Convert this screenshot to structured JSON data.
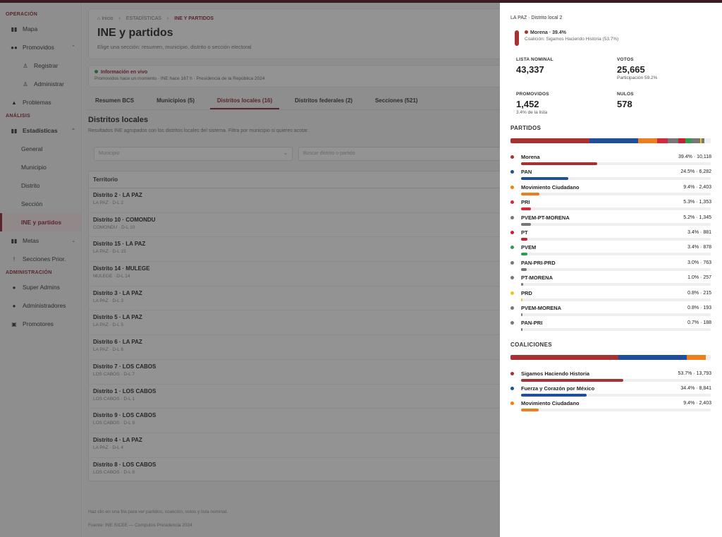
{
  "sidebar": {
    "section_operacion": "OPERACIÓN",
    "mapa": "Mapa",
    "promovidos": "Promovidos",
    "registrar": "Registrar",
    "administrar": "Administrar",
    "problemas": "Problemas",
    "section_analisis": "ANÁLISIS",
    "estadisticas": "Estadísticas",
    "general": "General",
    "municipio": "Municipio",
    "distrito": "Distrito",
    "seccion": "Sección",
    "ine_partidos": "INE y partidos",
    "metas": "Metas",
    "secciones_prior": "Secciones Prior.",
    "section_administracion": "ADMINISTRACIÓN",
    "super_admins": "Super Admins",
    "administradores": "Administradores",
    "promotores": "Promotores"
  },
  "header": {
    "crumb_home": "Inicio",
    "crumb_stats": "ESTADÍSTICAS",
    "crumb_current": "INE Y PARTIDOS",
    "title": "INE y partidos",
    "subtitle": "Elige una sección: resumen, municipio, distrito o sección electoral"
  },
  "live": {
    "title": "Información en vivo",
    "detail": "Promovidos hace un momento · INE hace 167 h · Presidencia de la República 2024"
  },
  "tabs": [
    "Resumen BCS",
    "Municipios (5)",
    "Distritos locales (16)",
    "Distritos federales (2)",
    "Secciones (521)"
  ],
  "section": {
    "title": "Distritos locales",
    "subtitle": "Resultados INE agrupados con los distritos locales del sistema. Filtra por municipio si quieres acotar.",
    "municipio_placeholder": "Municipio",
    "search_placeholder": "Buscar distrito o partido",
    "column_territorio": "Territorio"
  },
  "rows": [
    {
      "name": "Distrito 2 · LA PAZ",
      "sub": "LA PAZ · D-L 2"
    },
    {
      "name": "Distrito 10 · COMONDU",
      "sub": "COMONDU · D-L 10"
    },
    {
      "name": "Distrito 15 · LA PAZ",
      "sub": "LA PAZ · D-L 15"
    },
    {
      "name": "Distrito 14 · MULEGE",
      "sub": "MULEGE · D-L 14"
    },
    {
      "name": "Distrito 3 · LA PAZ",
      "sub": "LA PAZ · D-L 3"
    },
    {
      "name": "Distrito 5 · LA PAZ",
      "sub": "LA PAZ · D-L 5"
    },
    {
      "name": "Distrito 6 · LA PAZ",
      "sub": "LA PAZ · D-L 6"
    },
    {
      "name": "Distrito 7 · LOS CABOS",
      "sub": "LOS CABOS · D-L 7"
    },
    {
      "name": "Distrito 1 · LOS CABOS",
      "sub": "LOS CABOS · D-L 1"
    },
    {
      "name": "Distrito 9 · LOS CABOS",
      "sub": "LOS CABOS · D-L 9"
    },
    {
      "name": "Distrito 4 · LA PAZ",
      "sub": "LA PAZ · D-L 4"
    },
    {
      "name": "Distrito 8 · LOS CABOS",
      "sub": "LOS CABOS · D-L 8"
    }
  ],
  "footer": {
    "hint": "Haz clic en una fila para ver partidos, coalición, votos y lista nominal.",
    "source": "Fuente: INE SICEE — Computos Presidencia 2024"
  },
  "panel": {
    "top": "LA PAZ · Distrito local 2",
    "lead_party": "Morena · 39.4%",
    "lead_coalition": "Coalición: Sigamos Haciendo Historia (53.7%)",
    "lista_label": "LISTA NOMINAL",
    "lista_value": "43,337",
    "votos_label": "VOTOS",
    "votos_value": "25,665",
    "participacion": "Participación 59.2%",
    "promovidos_label": "PROMOVIDOS",
    "promovidos_value": "1,452",
    "promovidos_pct": "3.4% de la lista",
    "nulos_label": "NULOS",
    "nulos_value": "578",
    "partidos_title": "PARTIDOS",
    "coaliciones_title": "COALICIONES",
    "partidos": [
      {
        "name": "Morena",
        "value": "39.4% · 10,118",
        "pct": 39.4,
        "color": "#a83232"
      },
      {
        "name": "PAN",
        "value": "24.5% · 6,282",
        "pct": 24.5,
        "color": "#1d4f9c"
      },
      {
        "name": "Movimiento Ciudadano",
        "value": "9.4% · 2,403",
        "pct": 9.4,
        "color": "#ee7d1b"
      },
      {
        "name": "PRI",
        "value": "5.3% · 1,353",
        "pct": 5.3,
        "color": "#d12a3a"
      },
      {
        "name": "PVEM-PT-MORENA",
        "value": "5.2% · 1,345",
        "pct": 5.2,
        "color": "#777777"
      },
      {
        "name": "PT",
        "value": "3.4% · 881",
        "pct": 3.4,
        "color": "#c8202f"
      },
      {
        "name": "PVEM",
        "value": "3.4% · 878",
        "pct": 3.4,
        "color": "#2e9d4e"
      },
      {
        "name": "PAN-PRI-PRD",
        "value": "3.0% · 763",
        "pct": 3.0,
        "color": "#777777"
      },
      {
        "name": "PT-MORENA",
        "value": "1.0% · 257",
        "pct": 1.0,
        "color": "#777777"
      },
      {
        "name": "PRD",
        "value": "0.8% · 215",
        "pct": 0.8,
        "color": "#f0c419"
      },
      {
        "name": "PVEM-MORENA",
        "value": "0.8% · 193",
        "pct": 0.8,
        "color": "#777777"
      },
      {
        "name": "PAN-PRI",
        "value": "0.7% · 188",
        "pct": 0.7,
        "color": "#777777"
      }
    ],
    "coaliciones": [
      {
        "name": "Sigamos Haciendo Historia",
        "value": "53.7% · 13,793",
        "pct": 53.7,
        "color": "#a83232"
      },
      {
        "name": "Fuerza y Corazón por México",
        "value": "34.4% · 8,841",
        "pct": 34.4,
        "color": "#1d4f9c"
      },
      {
        "name": "Movimiento Ciudadano",
        "value": "9.4% · 2,403",
        "pct": 9.4,
        "color": "#ee7d1b"
      }
    ]
  },
  "colors": {
    "accent": "#8b2131",
    "live": "#2e9d4e"
  }
}
